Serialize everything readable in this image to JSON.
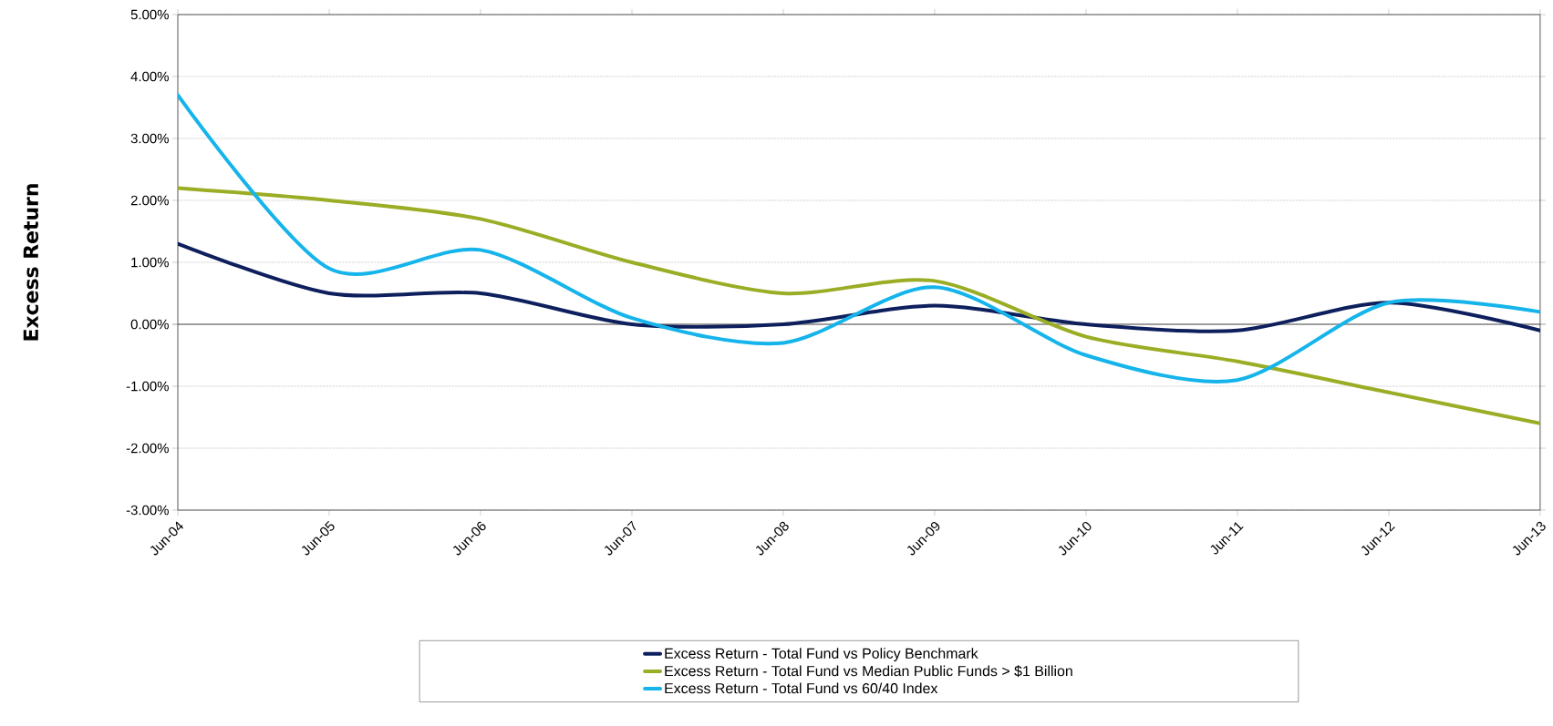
{
  "chart_data": {
    "type": "line",
    "ylabel": "Excess Return",
    "categories": [
      "Jun-04",
      "Jun-05",
      "Jun-06",
      "Jun-07",
      "Jun-08",
      "Jun-09",
      "Jun-10",
      "Jun-11",
      "Jun-12",
      "Jun-13"
    ],
    "series": [
      {
        "name": "Excess Return - Total Fund vs Policy Benchmark",
        "color": "#0d1f5c",
        "values": [
          1.3,
          0.5,
          0.5,
          0.0,
          0.0,
          0.3,
          0.0,
          -0.1,
          0.35,
          -0.1
        ]
      },
      {
        "name": "Excess Return - Total Fund vs Median Public Funds > $1 Billion",
        "color": "#9aad25",
        "values": [
          2.2,
          2.0,
          1.7,
          1.0,
          0.5,
          0.7,
          -0.2,
          -0.6,
          -1.1,
          -1.6
        ]
      },
      {
        "name": "Excess Return - Total Fund vs 60/40 Index",
        "color": "#15b4ea",
        "values": [
          3.7,
          0.9,
          1.2,
          0.1,
          -0.3,
          0.6,
          -0.5,
          -0.9,
          0.35,
          0.2
        ]
      }
    ],
    "ylim": [
      -3,
      5
    ],
    "yticks": [
      {
        "value": -3,
        "label": "-3.00%"
      },
      {
        "value": -2,
        "label": "-2.00%"
      },
      {
        "value": -1,
        "label": "-1.00%"
      },
      {
        "value": 0,
        "label": "0.00%"
      },
      {
        "value": 1,
        "label": "1.00%"
      },
      {
        "value": 2,
        "label": "2.00%"
      },
      {
        "value": 3,
        "label": "3.00%"
      },
      {
        "value": 4,
        "label": "4.00%"
      },
      {
        "value": 5,
        "label": "5.00%"
      }
    ],
    "grid": "y",
    "legend": "bottom",
    "marker": "none",
    "line_style": "solid"
  }
}
